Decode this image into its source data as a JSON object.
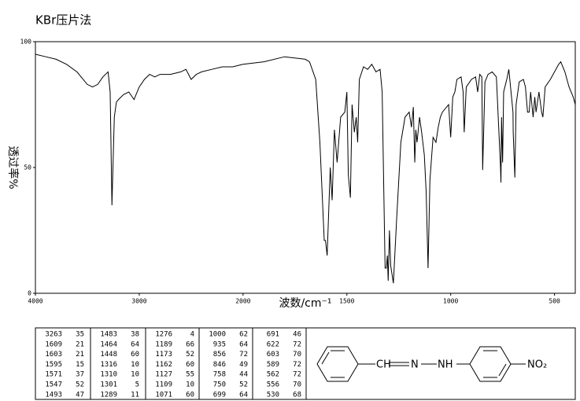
{
  "chart_data": {
    "type": "line",
    "title": "KBr压片法",
    "xlabel": "波数/cm⁻¹",
    "ylabel": "透过率%",
    "xlim": [
      4000,
      400
    ],
    "ylim": [
      0,
      100
    ],
    "xticks": [
      4000,
      3000,
      2000,
      1500,
      1000,
      500
    ],
    "yticks": [
      0,
      50,
      100
    ],
    "color": "#000000",
    "x": [
      4000,
      3900,
      3800,
      3700,
      3600,
      3500,
      3450,
      3400,
      3350,
      3300,
      3280,
      3263,
      3240,
      3220,
      3200,
      3150,
      3100,
      3050,
      3000,
      2950,
      2900,
      2850,
      2800,
      2700,
      2600,
      2550,
      2500,
      2450,
      2400,
      2300,
      2200,
      2100,
      2000,
      1900,
      1800,
      1700,
      1680,
      1650,
      1630,
      1609,
      1603,
      1595,
      1580,
      1571,
      1560,
      1547,
      1530,
      1510,
      1500,
      1493,
      1483,
      1475,
      1464,
      1455,
      1448,
      1440,
      1420,
      1400,
      1380,
      1360,
      1340,
      1330,
      1316,
      1310,
      1305,
      1301,
      1295,
      1289,
      1276,
      1260,
      1240,
      1220,
      1200,
      1189,
      1180,
      1173,
      1168,
      1162,
      1150,
      1140,
      1127,
      1118,
      1109,
      1100,
      1085,
      1071,
      1060,
      1050,
      1040,
      1020,
      1010,
      1000,
      990,
      980,
      970,
      950,
      940,
      935,
      925,
      900,
      880,
      870,
      860,
      850,
      846,
      835,
      820,
      800,
      780,
      760,
      758,
      755,
      750,
      745,
      730,
      720,
      700,
      699,
      691,
      685,
      670,
      650,
      640,
      630,
      622,
      615,
      603,
      595,
      589,
      575,
      562,
      556,
      545,
      520,
      500,
      480,
      470,
      450,
      430,
      410,
      400
    ],
    "values": [
      95,
      94,
      93,
      91,
      88,
      83,
      82,
      83,
      86,
      88,
      80,
      35,
      70,
      76,
      77,
      79,
      80,
      77,
      82,
      85,
      87,
      86,
      87,
      87,
      88,
      89,
      85,
      87,
      88,
      89,
      90,
      90,
      91,
      92,
      94,
      93,
      92,
      85,
      60,
      21,
      21,
      15,
      50,
      37,
      65,
      52,
      70,
      72,
      80,
      47,
      38,
      75,
      64,
      70,
      60,
      85,
      90,
      89,
      91,
      88,
      89,
      80,
      10,
      10,
      15,
      5,
      25,
      11,
      4,
      30,
      60,
      70,
      72,
      66,
      74,
      52,
      65,
      60,
      70,
      64,
      55,
      40,
      10,
      45,
      62,
      60,
      66,
      70,
      72,
      74,
      75,
      62,
      78,
      80,
      85,
      86,
      80,
      64,
      82,
      85,
      86,
      80,
      87,
      86,
      49,
      84,
      87,
      88,
      86,
      50,
      44,
      70,
      52,
      80,
      85,
      89,
      72,
      64,
      46,
      75,
      84,
      85,
      82,
      72,
      72,
      80,
      70,
      78,
      72,
      80,
      72,
      70,
      82,
      85,
      88,
      91,
      92,
      88,
      82,
      78,
      75
    ]
  },
  "peak_table": [
    [
      [
        3263,
        35
      ],
      [
        1609,
        21
      ],
      [
        1603,
        21
      ],
      [
        1595,
        15
      ],
      [
        1571,
        37
      ],
      [
        1547,
        52
      ],
      [
        1493,
        47
      ]
    ],
    [
      [
        1483,
        38
      ],
      [
        1464,
        64
      ],
      [
        1448,
        60
      ],
      [
        1316,
        10
      ],
      [
        1310,
        10
      ],
      [
        1301,
        5
      ],
      [
        1289,
        11
      ]
    ],
    [
      [
        1276,
        4
      ],
      [
        1189,
        66
      ],
      [
        1173,
        52
      ],
      [
        1162,
        60
      ],
      [
        1127,
        55
      ],
      [
        1109,
        10
      ],
      [
        1071,
        60
      ]
    ],
    [
      [
        1000,
        62
      ],
      [
        935,
        64
      ],
      [
        856,
        72
      ],
      [
        846,
        49
      ],
      [
        758,
        44
      ],
      [
        750,
        52
      ],
      [
        699,
        64
      ]
    ],
    [
      [
        691,
        46
      ],
      [
        622,
        72
      ],
      [
        603,
        70
      ],
      [
        589,
        72
      ],
      [
        562,
        72
      ],
      [
        556,
        70
      ],
      [
        530,
        68
      ]
    ]
  ],
  "structure": {
    "labels": [
      "CH",
      "N",
      "NH",
      "NO₂"
    ]
  }
}
